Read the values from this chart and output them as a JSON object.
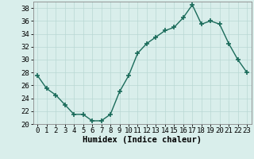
{
  "x": [
    0,
    1,
    2,
    3,
    4,
    5,
    6,
    7,
    8,
    9,
    10,
    11,
    12,
    13,
    14,
    15,
    16,
    17,
    18,
    19,
    20,
    21,
    22,
    23
  ],
  "y": [
    27.5,
    25.5,
    24.5,
    23.0,
    21.5,
    21.5,
    20.5,
    20.5,
    21.5,
    25.0,
    27.5,
    31.0,
    32.5,
    33.5,
    34.5,
    35.0,
    36.5,
    38.5,
    35.5,
    36.0,
    35.5,
    32.5,
    30.0,
    28.0
  ],
  "line_color": "#1a6b5a",
  "marker": "+",
  "marker_size": 5,
  "marker_lw": 1.2,
  "bg_color": "#d9eeeb",
  "grid_color": "#b8d8d4",
  "xlabel": "Humidex (Indice chaleur)",
  "ylim": [
    20,
    39
  ],
  "xlim": [
    -0.5,
    23.5
  ],
  "yticks": [
    20,
    22,
    24,
    26,
    28,
    30,
    32,
    34,
    36,
    38
  ],
  "xticks": [
    0,
    1,
    2,
    3,
    4,
    5,
    6,
    7,
    8,
    9,
    10,
    11,
    12,
    13,
    14,
    15,
    16,
    17,
    18,
    19,
    20,
    21,
    22,
    23
  ],
  "xlabel_fontsize": 7.5,
  "tick_fontsize": 6.5,
  "line_width": 1.0
}
